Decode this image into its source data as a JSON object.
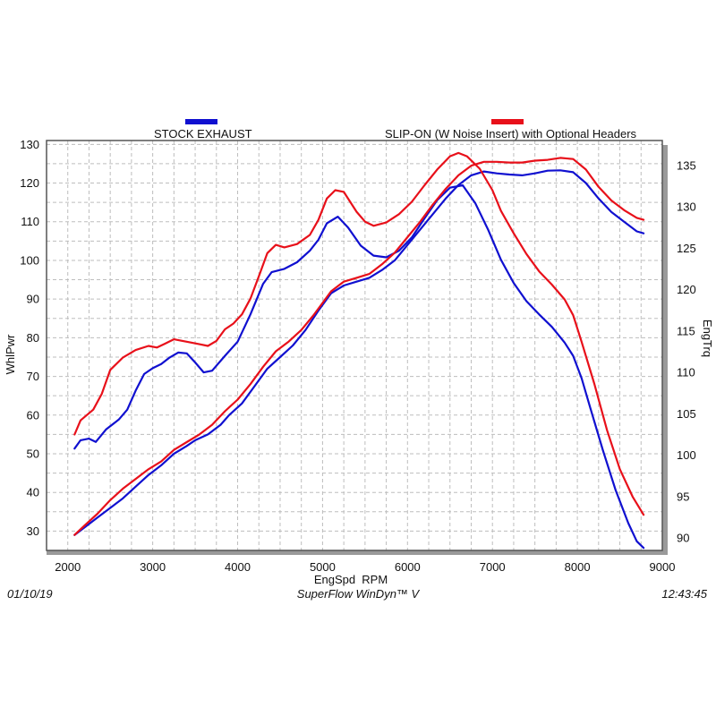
{
  "legend": [
    {
      "name": "STOCK EXHAUST",
      "color": "#1010d0"
    },
    {
      "name": "SLIP-ON (W Noise Insert) with Optional Headers",
      "color": "#e8101a"
    }
  ],
  "footer": {
    "date": "01/10/19",
    "software": "SuperFlow WinDyn™ V",
    "time": "12:43:45"
  },
  "chart_data": {
    "type": "line",
    "xlabel": "EngSpd  RPM",
    "ylabel_left": "WhlPwr",
    "ylabel_right": "EngTrq",
    "x_ticks": [
      2000,
      3000,
      4000,
      5000,
      6000,
      7000,
      8000,
      9000
    ],
    "y_left_ticks": [
      30,
      40,
      50,
      60,
      70,
      80,
      90,
      100,
      110,
      120,
      130
    ],
    "y_right_ticks": [
      90,
      95,
      100,
      105,
      110,
      115,
      120,
      125,
      130,
      135
    ],
    "xlim": [
      1750,
      9000
    ],
    "ylim_left": [
      25,
      131
    ],
    "ylim_right": [
      88.5,
      138
    ],
    "grid": true,
    "series": [
      {
        "name": "STOCK EXHAUST",
        "measure": "WhlPwr",
        "axis": "left",
        "color": "#1010d0",
        "points": [
          [
            2080,
            29
          ],
          [
            2200,
            31
          ],
          [
            2350,
            33.5
          ],
          [
            2500,
            36
          ],
          [
            2650,
            38.5
          ],
          [
            2800,
            41.5
          ],
          [
            2950,
            44.5
          ],
          [
            3100,
            47
          ],
          [
            3250,
            50
          ],
          [
            3400,
            52
          ],
          [
            3500,
            53.5
          ],
          [
            3650,
            55
          ],
          [
            3800,
            57.5
          ],
          [
            3900,
            60
          ],
          [
            4050,
            63
          ],
          [
            4200,
            67.5
          ],
          [
            4350,
            72
          ],
          [
            4500,
            75
          ],
          [
            4650,
            78
          ],
          [
            4800,
            82
          ],
          [
            4950,
            87
          ],
          [
            5100,
            91.5
          ],
          [
            5250,
            93.5
          ],
          [
            5400,
            94.5
          ],
          [
            5550,
            95.5
          ],
          [
            5700,
            97.5
          ],
          [
            5850,
            100
          ],
          [
            6000,
            104
          ],
          [
            6150,
            108
          ],
          [
            6300,
            112
          ],
          [
            6450,
            116
          ],
          [
            6600,
            119.5
          ],
          [
            6750,
            122
          ],
          [
            6900,
            123
          ],
          [
            7050,
            122.5
          ],
          [
            7200,
            122.2
          ],
          [
            7350,
            122
          ],
          [
            7500,
            122.5
          ],
          [
            7650,
            123.2
          ],
          [
            7800,
            123.3
          ],
          [
            7950,
            122.8
          ],
          [
            8100,
            120
          ],
          [
            8250,
            116
          ],
          [
            8400,
            112.5
          ],
          [
            8550,
            110
          ],
          [
            8700,
            107.5
          ],
          [
            8780,
            107
          ]
        ]
      },
      {
        "name": "STOCK EXHAUST",
        "measure": "EngTrq",
        "axis": "right",
        "color": "#1010d0",
        "points": [
          [
            2080,
            100.8
          ],
          [
            2150,
            101.8
          ],
          [
            2250,
            102
          ],
          [
            2330,
            101.6
          ],
          [
            2450,
            103.1
          ],
          [
            2600,
            104.3
          ],
          [
            2700,
            105.5
          ],
          [
            2800,
            107.8
          ],
          [
            2900,
            109.8
          ],
          [
            3000,
            110.5
          ],
          [
            3100,
            111
          ],
          [
            3200,
            111.8
          ],
          [
            3300,
            112.4
          ],
          [
            3400,
            112.3
          ],
          [
            3500,
            111.2
          ],
          [
            3600,
            110
          ],
          [
            3700,
            110.2
          ],
          [
            3850,
            112
          ],
          [
            4000,
            113.7
          ],
          [
            4150,
            117
          ],
          [
            4300,
            120.7
          ],
          [
            4400,
            122.1
          ],
          [
            4550,
            122.5
          ],
          [
            4700,
            123.3
          ],
          [
            4850,
            124.7
          ],
          [
            4950,
            126
          ],
          [
            5050,
            128
          ],
          [
            5180,
            128.8
          ],
          [
            5300,
            127.5
          ],
          [
            5450,
            125.3
          ],
          [
            5600,
            124.1
          ],
          [
            5750,
            123.9
          ],
          [
            5900,
            124.7
          ],
          [
            6050,
            126.3
          ],
          [
            6200,
            128.6
          ],
          [
            6350,
            130.8
          ],
          [
            6500,
            132.3
          ],
          [
            6650,
            132.6
          ],
          [
            6800,
            130.4
          ],
          [
            6950,
            127.2
          ],
          [
            7100,
            123.6
          ],
          [
            7250,
            120.8
          ],
          [
            7400,
            118.6
          ],
          [
            7550,
            117
          ],
          [
            7700,
            115.5
          ],
          [
            7850,
            113.6
          ],
          [
            7950,
            112
          ],
          [
            8050,
            109.3
          ],
          [
            8150,
            105.8
          ],
          [
            8300,
            100.6
          ],
          [
            8450,
            95.8
          ],
          [
            8600,
            91.8
          ],
          [
            8700,
            89.6
          ],
          [
            8780,
            88.8
          ]
        ]
      },
      {
        "name": "SLIP-ON (W Noise Insert) with Optional Headers",
        "measure": "WhlPwr",
        "axis": "left",
        "color": "#e8101a",
        "points": [
          [
            2080,
            29
          ],
          [
            2200,
            31.5
          ],
          [
            2350,
            34.5
          ],
          [
            2500,
            38
          ],
          [
            2650,
            41
          ],
          [
            2800,
            43.5
          ],
          [
            2950,
            46
          ],
          [
            3100,
            48
          ],
          [
            3250,
            51
          ],
          [
            3400,
            53
          ],
          [
            3550,
            55
          ],
          [
            3700,
            57.5
          ],
          [
            3850,
            61
          ],
          [
            4000,
            64
          ],
          [
            4150,
            68
          ],
          [
            4300,
            72.5
          ],
          [
            4450,
            76.5
          ],
          [
            4600,
            79
          ],
          [
            4750,
            82
          ],
          [
            4900,
            86
          ],
          [
            5000,
            89
          ],
          [
            5100,
            92
          ],
          [
            5250,
            94.5
          ],
          [
            5400,
            95.5
          ],
          [
            5550,
            96.5
          ],
          [
            5700,
            99
          ],
          [
            5850,
            102
          ],
          [
            6000,
            106
          ],
          [
            6150,
            110
          ],
          [
            6300,
            114.5
          ],
          [
            6450,
            118.5
          ],
          [
            6600,
            122
          ],
          [
            6750,
            124.5
          ],
          [
            6900,
            125.5
          ],
          [
            7050,
            125.5
          ],
          [
            7200,
            125.3
          ],
          [
            7350,
            125.3
          ],
          [
            7500,
            125.8
          ],
          [
            7650,
            126
          ],
          [
            7800,
            126.5
          ],
          [
            7950,
            126.2
          ],
          [
            8100,
            123.5
          ],
          [
            8250,
            119
          ],
          [
            8400,
            115.5
          ],
          [
            8550,
            113
          ],
          [
            8700,
            111
          ],
          [
            8780,
            110.5
          ]
        ]
      },
      {
        "name": "SLIP-ON (W Noise Insert) with Optional Headers",
        "measure": "EngTrq",
        "axis": "right",
        "color": "#e8101a",
        "points": [
          [
            2080,
            102.5
          ],
          [
            2150,
            104.2
          ],
          [
            2300,
            105.5
          ],
          [
            2400,
            107.4
          ],
          [
            2500,
            110.3
          ],
          [
            2650,
            111.8
          ],
          [
            2800,
            112.7
          ],
          [
            2950,
            113.2
          ],
          [
            3050,
            113
          ],
          [
            3150,
            113.5
          ],
          [
            3250,
            114
          ],
          [
            3400,
            113.7
          ],
          [
            3550,
            113.4
          ],
          [
            3650,
            113.2
          ],
          [
            3750,
            113.8
          ],
          [
            3850,
            115.2
          ],
          [
            3950,
            115.9
          ],
          [
            4050,
            117
          ],
          [
            4150,
            118.9
          ],
          [
            4250,
            121.6
          ],
          [
            4350,
            124.4
          ],
          [
            4450,
            125.4
          ],
          [
            4550,
            125.1
          ],
          [
            4700,
            125.5
          ],
          [
            4850,
            126.6
          ],
          [
            4950,
            128.4
          ],
          [
            5050,
            131
          ],
          [
            5150,
            132
          ],
          [
            5250,
            131.8
          ],
          [
            5400,
            129.4
          ],
          [
            5500,
            128.2
          ],
          [
            5600,
            127.7
          ],
          [
            5750,
            128.1
          ],
          [
            5900,
            129.1
          ],
          [
            6050,
            130.6
          ],
          [
            6200,
            132.6
          ],
          [
            6350,
            134.5
          ],
          [
            6500,
            136.1
          ],
          [
            6600,
            136.5
          ],
          [
            6700,
            136.1
          ],
          [
            6850,
            134.6
          ],
          [
            7000,
            132
          ],
          [
            7100,
            129.5
          ],
          [
            7250,
            126.8
          ],
          [
            7400,
            124.3
          ],
          [
            7550,
            122.2
          ],
          [
            7700,
            120.6
          ],
          [
            7850,
            118.8
          ],
          [
            7950,
            116.9
          ],
          [
            8050,
            113.7
          ],
          [
            8200,
            108.6
          ],
          [
            8350,
            103
          ],
          [
            8500,
            98.3
          ],
          [
            8650,
            95
          ],
          [
            8780,
            92.8
          ]
        ]
      }
    ]
  }
}
